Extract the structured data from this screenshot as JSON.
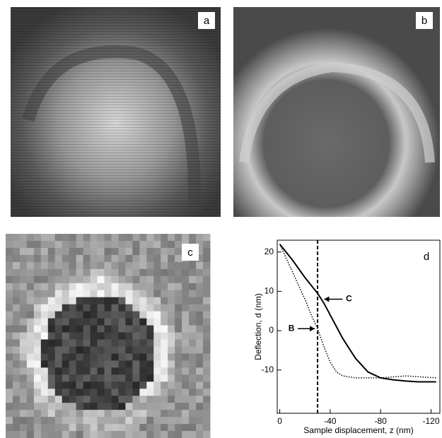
{
  "panels": {
    "a": {
      "label": "a"
    },
    "b": {
      "label": "b"
    },
    "c": {
      "label": "c"
    }
  },
  "chart_data": {
    "type": "line",
    "panel_label": "d",
    "x_label": "Sample displacement, z (nm)",
    "y_label": "Deflection, d (nm)",
    "xlim": [
      2,
      -127
    ],
    "ylim": [
      -21,
      23
    ],
    "xticks": [
      0,
      -40,
      -80,
      -120
    ],
    "yticks": [
      -10,
      0,
      10,
      20
    ],
    "marker_x": -30,
    "series": [
      {
        "name": "C",
        "color": "#000000",
        "style": "solid",
        "x": [
          0,
          -10,
          -20,
          -30,
          -35,
          -40,
          -50,
          -60,
          -70,
          -80,
          -90,
          -100,
          -110,
          -120,
          -124
        ],
        "values": [
          22,
          18,
          13.5,
          9.5,
          7,
          4,
          -2,
          -7,
          -10.5,
          -12,
          -12.5,
          -12.8,
          -13,
          -13,
          -13
        ]
      },
      {
        "name": "B",
        "color": "#000000",
        "style": "dotted",
        "x": [
          0,
          -10,
          -20,
          -25,
          -30,
          -35,
          -40,
          -45,
          -50,
          -60,
          -80,
          -100,
          -124
        ],
        "values": [
          22,
          15,
          8,
          4,
          0.5,
          -4,
          -8,
          -10.5,
          -11.5,
          -12,
          -12,
          -11.5,
          -12
        ]
      }
    ],
    "annotations": [
      {
        "text": "C",
        "x": -33,
        "y": 8
      },
      {
        "text": "B",
        "x": -30,
        "y": 0.5
      }
    ]
  }
}
